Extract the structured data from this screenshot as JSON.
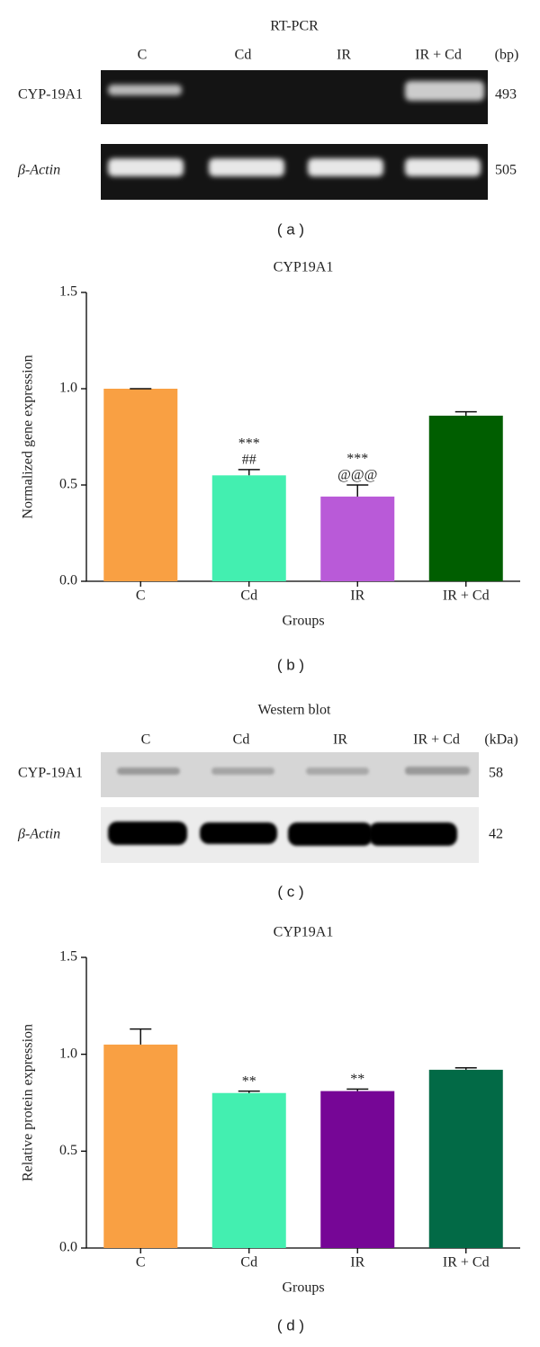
{
  "gel_a": {
    "title": "RT-PCR",
    "lanes": [
      "C",
      "Cd",
      "IR",
      "IR + Cd"
    ],
    "unit": "(bp)",
    "rows": [
      {
        "label": "CYP-19A1",
        "size": 493
      },
      {
        "label": "β-Actin",
        "size": 505
      }
    ]
  },
  "gel_c": {
    "title": "Western blot",
    "lanes": [
      "C",
      "Cd",
      "IR",
      "IR + Cd"
    ],
    "unit": "(kDa)",
    "rows": [
      {
        "label": "CYP-19A1",
        "size": 58
      },
      {
        "label": "β-Actin",
        "size": 42
      }
    ]
  },
  "panel_labels": [
    "( a )",
    "( b )",
    "( c )",
    "( d )"
  ],
  "chart_data": [
    {
      "type": "bar",
      "title": "CYP19A1",
      "x_label": "Groups",
      "y_label": "Normalized gene expression",
      "categories": [
        "C",
        "Cd",
        "IR",
        "IR + Cd"
      ],
      "values": [
        1.0,
        0.55,
        0.44,
        0.86
      ],
      "errors": [
        0,
        0.03,
        0.06,
        0.02
      ],
      "colors": [
        "#f9a043",
        "#43efb0",
        "#b95ad8",
        "#005e00"
      ],
      "annotations": [
        null,
        [
          "***",
          "##"
        ],
        [
          "***",
          "@@@"
        ],
        null
      ],
      "ylim": [
        0,
        1.5
      ],
      "yticks": [
        {
          "value": 0,
          "label": "0.0"
        },
        {
          "value": 0.5,
          "label": "0.5"
        },
        {
          "value": 1,
          "label": "1.0"
        },
        {
          "value": 1.5,
          "label": "1.5"
        }
      ]
    },
    {
      "type": "bar",
      "title": "CYP19A1",
      "x_label": "Groups",
      "y_label": "Relative protein expression",
      "categories": [
        "C",
        "Cd",
        "IR",
        "IR + Cd"
      ],
      "values": [
        1.05,
        0.8,
        0.81,
        0.92
      ],
      "errors": [
        0.08,
        0.01,
        0.01,
        0.01
      ],
      "colors": [
        "#f9a043",
        "#43efb0",
        "#760696",
        "#026a46"
      ],
      "annotations": [
        null,
        [
          "**"
        ],
        [
          "**"
        ],
        null
      ],
      "ylim": [
        0,
        1.5
      ],
      "yticks": [
        {
          "value": 0,
          "label": "0.0"
        },
        {
          "value": 0.5,
          "label": "0.5"
        },
        {
          "value": 1,
          "label": "1.0"
        },
        {
          "value": 1.5,
          "label": "1.5"
        }
      ]
    }
  ]
}
